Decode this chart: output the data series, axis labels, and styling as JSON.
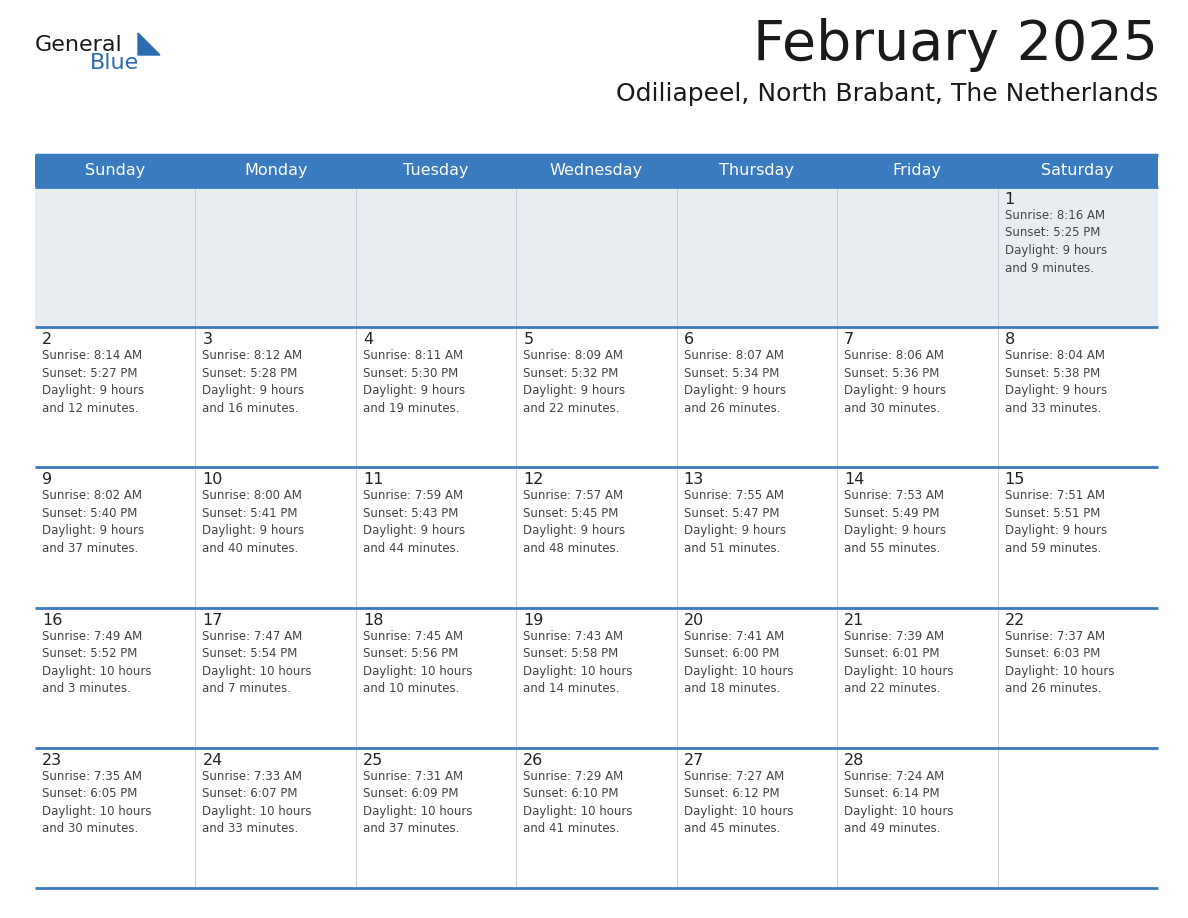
{
  "title": "February 2025",
  "subtitle": "Odiliapeel, North Brabant, The Netherlands",
  "days_of_week": [
    "Sunday",
    "Monday",
    "Tuesday",
    "Wednesday",
    "Thursday",
    "Friday",
    "Saturday"
  ],
  "header_bg": "#3a7abf",
  "header_text": "#ffffff",
  "cell_bg_gray": "#e8edf2",
  "cell_bg_white": "#ffffff",
  "border_color": "#3a7abf",
  "separator_color": "#3a7abf",
  "text_color": "#444444",
  "day_num_color": "#222222",
  "logo_general_color": "#1a1a1a",
  "logo_blue_color": "#2b6cb0",
  "weeks": [
    [
      {
        "day": null,
        "info": null
      },
      {
        "day": null,
        "info": null
      },
      {
        "day": null,
        "info": null
      },
      {
        "day": null,
        "info": null
      },
      {
        "day": null,
        "info": null
      },
      {
        "day": null,
        "info": null
      },
      {
        "day": 1,
        "info": "Sunrise: 8:16 AM\nSunset: 5:25 PM\nDaylight: 9 hours\nand 9 minutes."
      }
    ],
    [
      {
        "day": 2,
        "info": "Sunrise: 8:14 AM\nSunset: 5:27 PM\nDaylight: 9 hours\nand 12 minutes."
      },
      {
        "day": 3,
        "info": "Sunrise: 8:12 AM\nSunset: 5:28 PM\nDaylight: 9 hours\nand 16 minutes."
      },
      {
        "day": 4,
        "info": "Sunrise: 8:11 AM\nSunset: 5:30 PM\nDaylight: 9 hours\nand 19 minutes."
      },
      {
        "day": 5,
        "info": "Sunrise: 8:09 AM\nSunset: 5:32 PM\nDaylight: 9 hours\nand 22 minutes."
      },
      {
        "day": 6,
        "info": "Sunrise: 8:07 AM\nSunset: 5:34 PM\nDaylight: 9 hours\nand 26 minutes."
      },
      {
        "day": 7,
        "info": "Sunrise: 8:06 AM\nSunset: 5:36 PM\nDaylight: 9 hours\nand 30 minutes."
      },
      {
        "day": 8,
        "info": "Sunrise: 8:04 AM\nSunset: 5:38 PM\nDaylight: 9 hours\nand 33 minutes."
      }
    ],
    [
      {
        "day": 9,
        "info": "Sunrise: 8:02 AM\nSunset: 5:40 PM\nDaylight: 9 hours\nand 37 minutes."
      },
      {
        "day": 10,
        "info": "Sunrise: 8:00 AM\nSunset: 5:41 PM\nDaylight: 9 hours\nand 40 minutes."
      },
      {
        "day": 11,
        "info": "Sunrise: 7:59 AM\nSunset: 5:43 PM\nDaylight: 9 hours\nand 44 minutes."
      },
      {
        "day": 12,
        "info": "Sunrise: 7:57 AM\nSunset: 5:45 PM\nDaylight: 9 hours\nand 48 minutes."
      },
      {
        "day": 13,
        "info": "Sunrise: 7:55 AM\nSunset: 5:47 PM\nDaylight: 9 hours\nand 51 minutes."
      },
      {
        "day": 14,
        "info": "Sunrise: 7:53 AM\nSunset: 5:49 PM\nDaylight: 9 hours\nand 55 minutes."
      },
      {
        "day": 15,
        "info": "Sunrise: 7:51 AM\nSunset: 5:51 PM\nDaylight: 9 hours\nand 59 minutes."
      }
    ],
    [
      {
        "day": 16,
        "info": "Sunrise: 7:49 AM\nSunset: 5:52 PM\nDaylight: 10 hours\nand 3 minutes."
      },
      {
        "day": 17,
        "info": "Sunrise: 7:47 AM\nSunset: 5:54 PM\nDaylight: 10 hours\nand 7 minutes."
      },
      {
        "day": 18,
        "info": "Sunrise: 7:45 AM\nSunset: 5:56 PM\nDaylight: 10 hours\nand 10 minutes."
      },
      {
        "day": 19,
        "info": "Sunrise: 7:43 AM\nSunset: 5:58 PM\nDaylight: 10 hours\nand 14 minutes."
      },
      {
        "day": 20,
        "info": "Sunrise: 7:41 AM\nSunset: 6:00 PM\nDaylight: 10 hours\nand 18 minutes."
      },
      {
        "day": 21,
        "info": "Sunrise: 7:39 AM\nSunset: 6:01 PM\nDaylight: 10 hours\nand 22 minutes."
      },
      {
        "day": 22,
        "info": "Sunrise: 7:37 AM\nSunset: 6:03 PM\nDaylight: 10 hours\nand 26 minutes."
      }
    ],
    [
      {
        "day": 23,
        "info": "Sunrise: 7:35 AM\nSunset: 6:05 PM\nDaylight: 10 hours\nand 30 minutes."
      },
      {
        "day": 24,
        "info": "Sunrise: 7:33 AM\nSunset: 6:07 PM\nDaylight: 10 hours\nand 33 minutes."
      },
      {
        "day": 25,
        "info": "Sunrise: 7:31 AM\nSunset: 6:09 PM\nDaylight: 10 hours\nand 37 minutes."
      },
      {
        "day": 26,
        "info": "Sunrise: 7:29 AM\nSunset: 6:10 PM\nDaylight: 10 hours\nand 41 minutes."
      },
      {
        "day": 27,
        "info": "Sunrise: 7:27 AM\nSunset: 6:12 PM\nDaylight: 10 hours\nand 45 minutes."
      },
      {
        "day": 28,
        "info": "Sunrise: 7:24 AM\nSunset: 6:14 PM\nDaylight: 10 hours\nand 49 minutes."
      },
      {
        "day": null,
        "info": null
      }
    ]
  ]
}
